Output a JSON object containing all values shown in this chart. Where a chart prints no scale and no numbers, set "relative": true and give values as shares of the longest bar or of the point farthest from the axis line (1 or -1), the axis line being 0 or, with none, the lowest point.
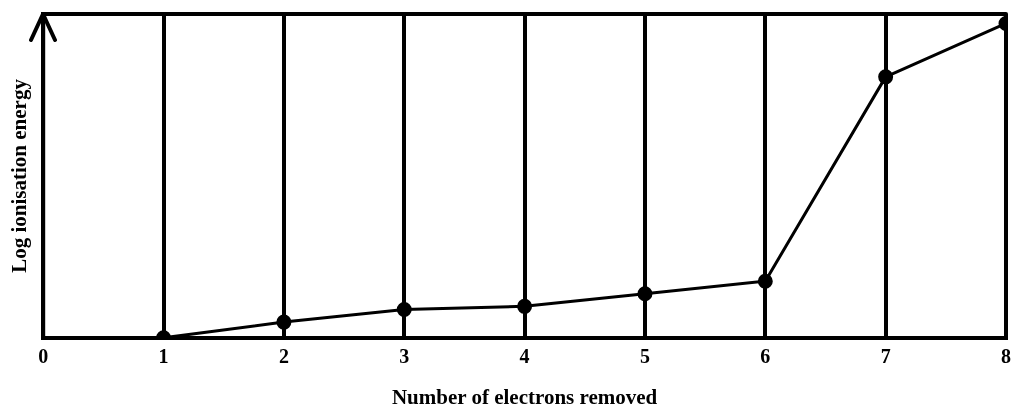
{
  "chart_data": {
    "type": "line",
    "xlabel": "Number of electrons removed",
    "ylabel": "Log ionisation energy",
    "relative": true,
    "x": [
      1,
      2,
      3,
      4,
      5,
      6,
      7,
      8
    ],
    "series": [
      {
        "color": "#000000",
        "values": [
          0,
          0.05,
          0.09,
          0.1,
          0.14,
          0.18,
          0.83,
          1
        ]
      }
    ],
    "xlim": [
      0,
      8
    ],
    "xticks": [
      0,
      1,
      2,
      3,
      4,
      5,
      6,
      7,
      8
    ],
    "grid": "x",
    "marker": "circle",
    "line_style": "solid",
    "legend": false
  }
}
